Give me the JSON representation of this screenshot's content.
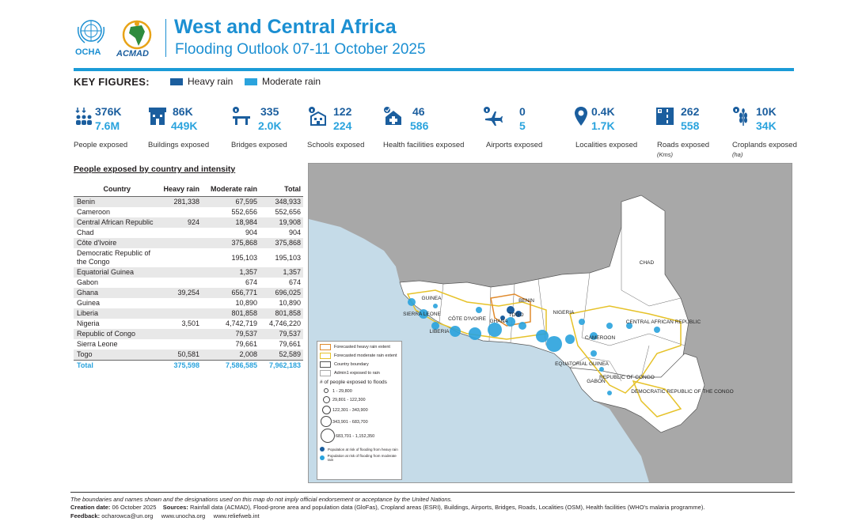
{
  "header": {
    "org1": "OCHA",
    "org2": "ACMAD",
    "title": "West and Central Africa",
    "subtitle": "Flooding Outlook 07-11 October 2025"
  },
  "key_figures": {
    "label": "KEY FIGURES:",
    "legend_heavy": "Heavy rain",
    "legend_moderate": "Moderate rain",
    "colors": {
      "heavy": "#1b5e9e",
      "moderate": "#2aa3dd"
    },
    "items": [
      {
        "heavy": "376K",
        "moderate": "7.6M",
        "label": "People exposed",
        "unit": "",
        "icon": "people-icon"
      },
      {
        "heavy": "86K",
        "moderate": "449K",
        "label": "Buildings exposed",
        "unit": "",
        "icon": "building-icon"
      },
      {
        "heavy": "335",
        "moderate": "2.0K",
        "label": "Bridges exposed",
        "unit": "",
        "icon": "bridge-icon"
      },
      {
        "heavy": "122",
        "moderate": "224",
        "label": "Schools exposed",
        "unit": "",
        "icon": "school-icon"
      },
      {
        "heavy": "46",
        "moderate": "586",
        "label": "Health facilities exposed",
        "unit": "",
        "icon": "health-icon"
      },
      {
        "heavy": "0",
        "moderate": "5",
        "label": "Airports exposed",
        "unit": "",
        "icon": "airport-icon"
      },
      {
        "heavy": "0.4K",
        "moderate": "1.7K",
        "label": "Localities exposed",
        "unit": "",
        "icon": "locality-icon"
      },
      {
        "heavy": "262",
        "moderate": "558",
        "label": "Roads exposed",
        "unit": "(Kms)",
        "icon": "road-icon"
      },
      {
        "heavy": "10K",
        "moderate": "34K",
        "label": "Croplands exposed",
        "unit": "(ha)",
        "icon": "crop-icon"
      }
    ]
  },
  "table": {
    "title": "People exposed by country and intensity",
    "headers": [
      "Country",
      "Heavy rain",
      "Moderate rain",
      "Total"
    ],
    "rows": [
      [
        "Benin",
        "281,338",
        "67,595",
        "348,933"
      ],
      [
        "Cameroon",
        "",
        "552,656",
        "552,656"
      ],
      [
        "Central African Republic",
        "924",
        "18,984",
        "19,908"
      ],
      [
        "Chad",
        "",
        "904",
        "904"
      ],
      [
        "Côte d'Ivoire",
        "",
        "375,868",
        "375,868"
      ],
      [
        "Democratic Republic of the Congo",
        "",
        "195,103",
        "195,103"
      ],
      [
        "Equatorial Guinea",
        "",
        "1,357",
        "1,357"
      ],
      [
        "Gabon",
        "",
        "674",
        "674"
      ],
      [
        "Ghana",
        "39,254",
        "656,771",
        "696,025"
      ],
      [
        "Guinea",
        "",
        "10,890",
        "10,890"
      ],
      [
        "Liberia",
        "",
        "801,858",
        "801,858"
      ],
      [
        "Nigeria",
        "3,501",
        "4,742,719",
        "4,746,220"
      ],
      [
        "Republic of Congo",
        "",
        "79,537",
        "79,537"
      ],
      [
        "Sierra Leone",
        "",
        "79,661",
        "79,661"
      ],
      [
        "Togo",
        "50,581",
        "2,008",
        "52,589"
      ]
    ],
    "total": [
      "Total",
      "375,598",
      "7,586,585",
      "7,962,183"
    ]
  },
  "map": {
    "labels": {
      "chad": "CHAD",
      "guinea": "GUINEA",
      "sierra_leone": "SIERRA LEONE",
      "liberia": "LIBERIA",
      "cote": "CÔTE D'IVOIRE",
      "ghana": "GHANA",
      "togo": "TOGO",
      "benin": "BENIN",
      "nigeria": "NIGERIA",
      "car": "CENTRAL AFRICAN REPUBLIC",
      "cameroon": "CAMEROON",
      "eq_guinea": "EQUATORIAL GUINEA",
      "gabon": "GABON",
      "roc": "REPUBLIC OF CONGO",
      "drc": "DEMOCRATIC REPUBLIC OF THE CONGO"
    },
    "legend": {
      "heavy_extent": "Forecasted heavy rain extent",
      "moderate_extent": "Forecasted moderate rain extent",
      "boundary": "Country boundary",
      "admin1": "Admin1 exposed to rain",
      "size_title": "# of people exposed to floods",
      "sizes": [
        "1 - 29,800",
        "29,801 - 122,300",
        "122,301 - 343,900",
        "343,901 - 683,700",
        "683,701 - 1,152,350"
      ],
      "pop_heavy": "Population at risk of flooding from heavy rain",
      "pop_moderate": "Population at risk of flooding from moderate rain"
    }
  },
  "footer": {
    "disclaimer": "The boundaries and names shown and the designations used on this map do not imply official endorsement or acceptance by the United Nations.",
    "creation_label": "Creation date:",
    "creation_date": "06 October 2025",
    "sources_label": "Sources:",
    "sources": "Rainfall data (ACMAD), Flood-prone area and population data (GloFas), Cropland areas (ESRI), Buildings, Airports, Bridges, Roads, Localities (OSM), Health facilities (WHO's malaria programme).",
    "feedback_label": "Feedback:",
    "feedback_email": "ocharowca@un.org",
    "site1": "www.unocha.org",
    "site2": "www.reliefweb.int"
  }
}
